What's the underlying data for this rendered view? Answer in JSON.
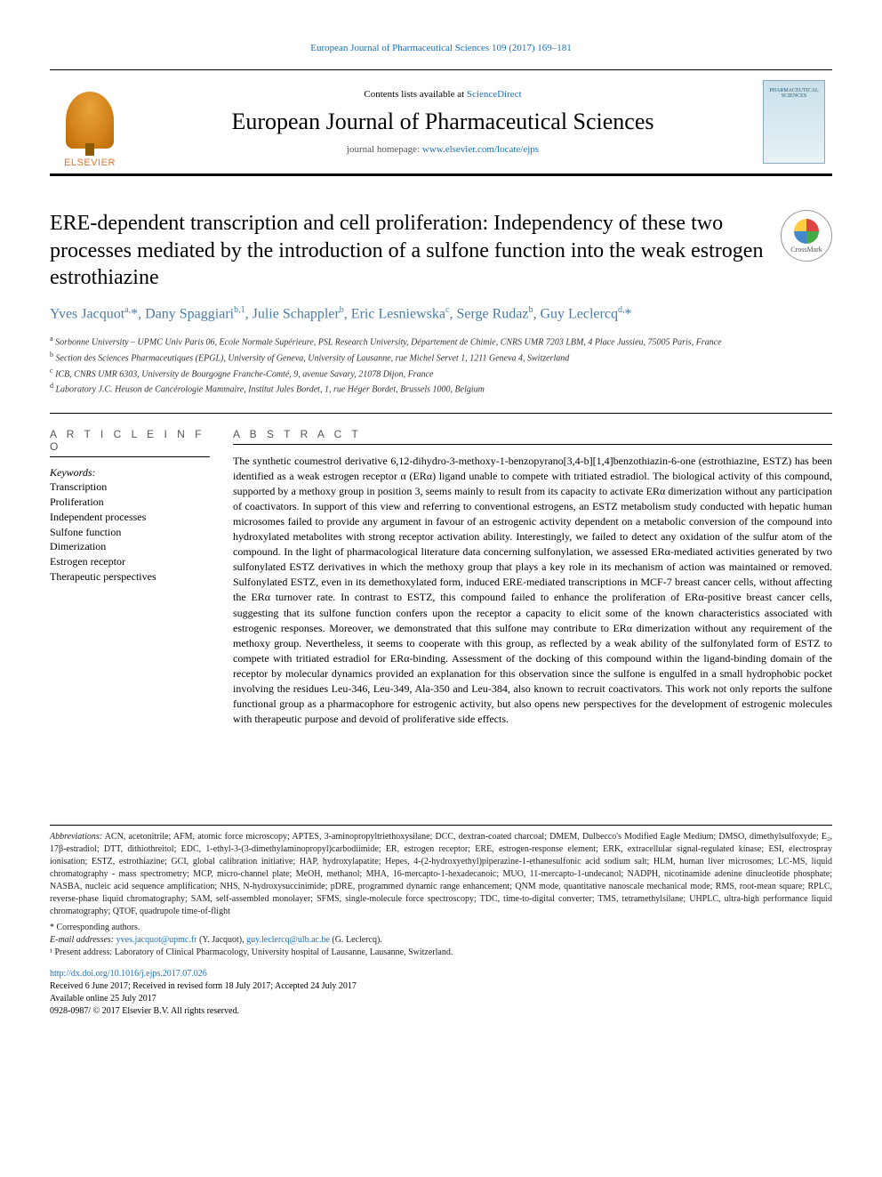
{
  "running_header": "European Journal of Pharmaceutical Sciences 109 (2017) 169–181",
  "header": {
    "contents_prefix": "Contents lists available at ",
    "contents_link": "ScienceDirect",
    "journal_name": "European Journal of Pharmaceutical Sciences",
    "homepage_prefix": "journal homepage: ",
    "homepage_url": "www.elsevier.com/locate/ejps",
    "publisher": "ELSEVIER",
    "cover_label1": "PHARMACEUTICAL",
    "cover_label2": "SCIENCES"
  },
  "crossmark_label": "CrossMark",
  "title": "ERE-dependent transcription and cell proliferation: Independency of these two processes mediated by the introduction of a sulfone function into the weak estrogen estrothiazine",
  "authors_html": "Yves Jacquot<sup>a,</sup>*, Dany Spaggiari<sup>b,1</sup>, Julie Schappler<sup>b</sup>, Eric Lesniewska<sup>c</sup>, Serge Rudaz<sup>b</sup>, Guy Leclercq<sup>d,</sup>*",
  "affiliations": [
    {
      "key": "a",
      "text": "Sorbonne University – UPMC Univ Paris 06, Ecole Normale Supérieure, PSL Research University, Département de Chimie, CNRS UMR 7203 LBM, 4 Place Jussieu, 75005 Paris, France"
    },
    {
      "key": "b",
      "text": "Section des Sciences Pharmaceutiques (EPGL), University of Geneva, University of Lausanne, rue Michel Servet 1, 1211 Geneva 4, Switzerland"
    },
    {
      "key": "c",
      "text": "ICB, CNRS UMR 6303, University de Bourgogne Franche-Comté, 9, avenue Savary, 21078 Dijon, France"
    },
    {
      "key": "d",
      "text": "Laboratory J.C. Heuson de Cancérologie Mammaire, Institut Jules Bordet, 1, rue Héger Bordet, Brussels 1000, Belgium"
    }
  ],
  "article_info": {
    "heading": "A R T I C L E  I N F O",
    "keywords_label": "Keywords:",
    "keywords": [
      "Transcription",
      "Proliferation",
      "Independent processes",
      "Sulfone function",
      "Dimerization",
      "Estrogen receptor",
      "Therapeutic perspectives"
    ]
  },
  "abstract": {
    "heading": "A B S T R A C T",
    "text": "The synthetic coumestrol derivative 6,12-dihydro-3-methoxy-1-benzopyrano[3,4-b][1,4]benzothiazin-6-one (estrothiazine, ESTZ) has been identified as a weak estrogen receptor α (ERα) ligand unable to compete with tritiated estradiol. The biological activity of this compound, supported by a methoxy group in position 3, seems mainly to result from its capacity to activate ERα dimerization without any participation of coactivators. In support of this view and referring to conventional estrogens, an ESTZ metabolism study conducted with hepatic human microsomes failed to provide any argument in favour of an estrogenic activity dependent on a metabolic conversion of the compound into hydroxylated metabolites with strong receptor activation ability. Interestingly, we failed to detect any oxidation of the sulfur atom of the compound. In the light of pharmacological literature data concerning sulfonylation, we assessed ERα-mediated activities generated by two sulfonylated ESTZ derivatives in which the methoxy group that plays a key role in its mechanism of action was maintained or removed. Sulfonylated ESTZ, even in its demethoxylated form, induced ERE-mediated transcriptions in MCF-7 breast cancer cells, without affecting the ERα turnover rate. In contrast to ESTZ, this compound failed to enhance the proliferation of ERα-positive breast cancer cells, suggesting that its sulfone function confers upon the receptor a capacity to elicit some of the known characteristics associated with estrogenic responses. Moreover, we demonstrated that this sulfone may contribute to ERα dimerization without any requirement of the methoxy group. Nevertheless, it seems to cooperate with this group, as reflected by a weak ability of the sulfonylated form of ESTZ to compete with tritiated estradiol for ERα-binding. Assessment of the docking of this compound within the ligand-binding domain of the receptor by molecular dynamics provided an explanation for this observation since the sulfone is engulfed in a small hydrophobic pocket involving the residues Leu-346, Leu-349, Ala-350 and Leu-384, also known to recruit coactivators. This work not only reports the sulfone functional group as a pharmacophore for estrogenic activity, but also opens new perspectives for the development of estrogenic molecules with therapeutic purpose and devoid of proliferative side effects."
  },
  "footnotes": {
    "abbrev_label": "Abbreviations:",
    "abbrev_text": " ACN, acetonitrile; AFM, atomic force microscopy; APTES, 3-aminopropyltriethoxysilane; DCC, dextran-coated charcoal; DMEM, Dulbecco's Modified Eagle Medium; DMSO, dimethylsulfoxyde; E₂, 17β-estradiol; DTT, dithiothreitol; EDC, 1-ethyl-3-(3-dimethylaminopropyl)carbodiimide; ER, estrogen receptor; ERE, estrogen-response element; ERK, extracellular signal-regulated kinase; ESI, electrospray ionisation; ESTZ, estrothiazine; GCI, global calibration initiative; HAP, hydroxylapatite; Hepes, 4-(2-hydroxyethyl)piperazine-1-ethanesulfonic acid sodium salt; HLM, human liver microsomes; LC-MS, liquid chromatography - mass spectrometry; MCP, micro-channel plate; MeOH, methanol; MHA, 16-mercapto-1-hexadecanoic; MUO, 11-mercapto-1-undecanol; NADPH, nicotinamide adenine dinucleotide phosphate; NASBA, nucleic acid sequence amplification; NHS, N-hydroxysuccinimide; pDRE, programmed dynamic range enhancement; QNM mode, quantitative nanoscale mechanical mode; RMS, root-mean square; RPLC, reverse-phase liquid chromatography; SAM, self-assembled monolayer; SFMS, single-molecule force spectroscopy; TDC, time-to-digital converter; TMS, tetramethylsilane; UHPLC, ultra-high performance liquid chromatography; QTOF, quadrupole time-of-flight",
    "corresponding": "* Corresponding authors.",
    "email_label": "E-mail addresses: ",
    "email1": "yves.jacquot@upmc.fr",
    "email1_name": " (Y. Jacquot), ",
    "email2": "guy.leclercq@ulb.ac.be",
    "email2_name": " (G. Leclercq).",
    "note1": "¹ Present address: Laboratory of Clinical Pharmacology, University hospital of Lausanne, Lausanne, Switzerland."
  },
  "footer": {
    "doi": "http://dx.doi.org/10.1016/j.ejps.2017.07.026",
    "history": "Received 6 June 2017; Received in revised form 18 July 2017; Accepted 24 July 2017",
    "available": "Available online 25 July 2017",
    "copyright": "0928-0987/ © 2017 Elsevier B.V. All rights reserved."
  },
  "colors": {
    "link": "#1a6fb8",
    "author": "#4a7ba8",
    "rule": "#000000",
    "background": "#ffffff"
  },
  "typography": {
    "body_pt": 13,
    "title_pt": 24,
    "journal_pt": 26,
    "authors_pt": 16,
    "affil_pt": 10,
    "abstract_pt": 12,
    "footnote_pt": 10
  }
}
